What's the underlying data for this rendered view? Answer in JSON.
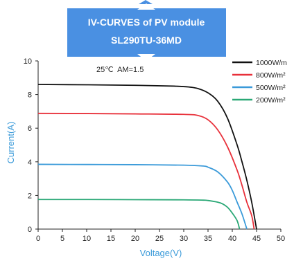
{
  "banner": {
    "line1": "IV-CURVES of PV module",
    "line2": "SL290TU-36MD",
    "color": "#4a90e2"
  },
  "chart_data": {
    "type": "line",
    "title": "IV-CURVES of PV module SL290TU-36MD",
    "xlabel": "Voltage(V)",
    "ylabel": "Current(A)",
    "xlim": [
      0,
      50
    ],
    "ylim": [
      0,
      10
    ],
    "x_ticks": [
      "0",
      "5",
      "10",
      "15",
      "20",
      "25",
      "30",
      "35",
      "40",
      "45",
      "50"
    ],
    "y_ticks": [
      "0",
      "2",
      "4",
      "6",
      "8",
      "10"
    ],
    "grid": false,
    "legend_position": "top-right",
    "annotation": "25℃  AM=1.5",
    "ylabel_color": "#3a9ad9",
    "xlabel_color": "#3a9ad9",
    "series": [
      {
        "name": "1000W/m",
        "color": "#111111",
        "points": [
          [
            0,
            8.6
          ],
          [
            10,
            8.58
          ],
          [
            20,
            8.55
          ],
          [
            28,
            8.5
          ],
          [
            31,
            8.45
          ],
          [
            33,
            8.35
          ],
          [
            35,
            8.1
          ],
          [
            37,
            7.6
          ],
          [
            39,
            6.6
          ],
          [
            41,
            5.0
          ],
          [
            42,
            4.0
          ],
          [
            43,
            2.9
          ],
          [
            44,
            1.6
          ],
          [
            45,
            0
          ]
        ]
      },
      {
        "name": "800W/m²",
        "color": "#e8303a",
        "points": [
          [
            0,
            6.88
          ],
          [
            10,
            6.87
          ],
          [
            20,
            6.85
          ],
          [
            30,
            6.82
          ],
          [
            33,
            6.75
          ],
          [
            35,
            6.5
          ],
          [
            37,
            5.9
          ],
          [
            39,
            4.9
          ],
          [
            41,
            3.5
          ],
          [
            42,
            2.6
          ],
          [
            43,
            1.6
          ],
          [
            44,
            0.8
          ],
          [
            44.5,
            0
          ]
        ]
      },
      {
        "name": "500W/m²",
        "color": "#3a9ad9",
        "points": [
          [
            0,
            3.85
          ],
          [
            10,
            3.84
          ],
          [
            20,
            3.83
          ],
          [
            30,
            3.8
          ],
          [
            34,
            3.75
          ],
          [
            35,
            3.68
          ],
          [
            37,
            3.4
          ],
          [
            39,
            2.8
          ],
          [
            40,
            2.3
          ],
          [
            41,
            1.6
          ],
          [
            42,
            0.9
          ],
          [
            43,
            0
          ]
        ]
      },
      {
        "name": "200W/m²",
        "color": "#2aa876",
        "points": [
          [
            0,
            1.76
          ],
          [
            10,
            1.76
          ],
          [
            20,
            1.75
          ],
          [
            30,
            1.74
          ],
          [
            34,
            1.72
          ],
          [
            35,
            1.7
          ],
          [
            37,
            1.6
          ],
          [
            38,
            1.5
          ],
          [
            39,
            1.3
          ],
          [
            40,
            0.95
          ],
          [
            41,
            0.5
          ],
          [
            41.5,
            0
          ]
        ]
      }
    ]
  }
}
